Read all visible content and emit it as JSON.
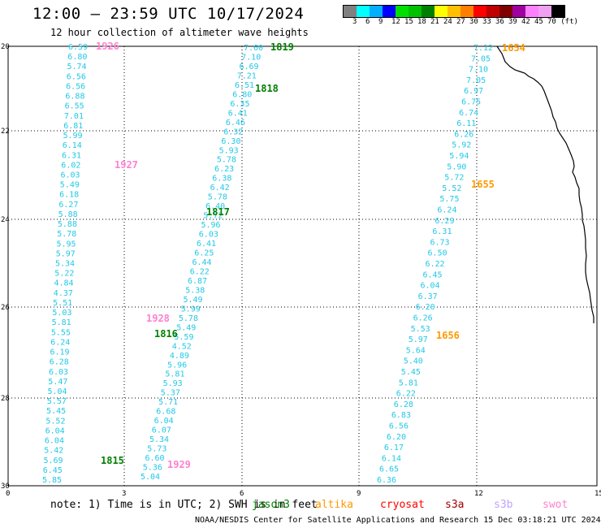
{
  "header": {
    "title": "12:00 – 23:59 UTC 10/17/2024",
    "subtitle": "12 hour collection of altimeter wave heights"
  },
  "colorbar": {
    "colors": [
      "#808080",
      "#00ffff",
      "#00b0ff",
      "#0000ff",
      "#00e000",
      "#00c000",
      "#008000",
      "#ffff00",
      "#ffc000",
      "#ff8000",
      "#ff0000",
      "#c00000",
      "#800000",
      "#a000a0",
      "#ff80ff",
      "#f0a0f0",
      "#000000"
    ],
    "labels": [
      "3",
      "6",
      "9",
      "12",
      "15",
      "18",
      "21",
      "24",
      "27",
      "30",
      "33",
      "36",
      "39",
      "42",
      "45",
      "70 (ft)"
    ]
  },
  "map": {
    "lat_ticks": [
      "20",
      "22",
      "24",
      "26",
      "28",
      "30"
    ],
    "lon_ticks": [
      "0",
      "3",
      "6",
      "9",
      "12",
      "15"
    ],
    "coast_color": "#000000",
    "grid": "dotted"
  },
  "passes": [
    {
      "id": "1926",
      "color": "#ff80d0"
    },
    {
      "id": "1927",
      "color": "#ff80d0"
    },
    {
      "id": "1928",
      "color": "#ff80d0"
    },
    {
      "id": "1929",
      "color": "#ff80d0"
    },
    {
      "id": "1819",
      "color": "#008000"
    },
    {
      "id": "1818",
      "color": "#008000"
    },
    {
      "id": "1817",
      "color": "#008000"
    },
    {
      "id": "1816",
      "color": "#008000"
    },
    {
      "id": "1815",
      "color": "#008000"
    },
    {
      "id": "1654",
      "color": "#ff9900"
    },
    {
      "id": "1655",
      "color": "#ff9900"
    },
    {
      "id": "1656",
      "color": "#ff9900"
    }
  ],
  "track_left": [
    "6.59",
    "6.80",
    "5.74",
    "6.56",
    "6.56",
    "6.88",
    "6.55",
    "7.01",
    "6.81",
    "5.99",
    "6.14",
    "6.31",
    "6.02",
    "6.03",
    "5.49",
    "6.18",
    "6.27",
    "5.88",
    "5.88",
    "5.78",
    "5.95",
    "5.97",
    "5.34",
    "5.22",
    "4.84",
    "4.37",
    "5.51",
    "5.03",
    "5.81",
    "5.55",
    "6.24",
    "6.19",
    "6.28",
    "6.03",
    "5.47",
    "5.04",
    "5.57",
    "5.45",
    "5.52",
    "6.04",
    "6.04",
    "5.42",
    "5.69",
    "6.45",
    "5.85"
  ],
  "track_middle": [
    "7.60",
    "7.10",
    "6.69",
    "7.21",
    "6.51",
    "6.80",
    "6.35",
    "6.41",
    "6.46",
    "6.32",
    "6.30",
    "5.93",
    "5.78",
    "6.23",
    "6.38",
    "6.42",
    "5.78",
    "6.40",
    "5.72",
    "5.96",
    "6.03",
    "6.41",
    "6.25",
    "6.44",
    "6.22",
    "6.87",
    "5.38",
    "5.49",
    "5.99",
    "5.78",
    "5.49",
    "5.59",
    "4.52",
    "4.89",
    "5.96",
    "5.81",
    "5.93",
    "5.37",
    "5.71",
    "6.68",
    "6.04",
    "6.07",
    "5.34",
    "5.73",
    "6.60",
    "5.36",
    "5.04"
  ],
  "track_right": [
    "7.12",
    "7.05",
    "7.10",
    "7.05",
    "6.97",
    "6.75",
    "6.74",
    "6.11",
    "6.26",
    "5.92",
    "5.94",
    "5.90",
    "5.72",
    "5.52",
    "5.75",
    "6.24",
    "6.29",
    "6.31",
    "6.73",
    "6.50",
    "6.22",
    "6.45",
    "6.04",
    "6.37",
    "6.20",
    "6.26",
    "5.53",
    "5.97",
    "5.64",
    "5.40",
    "5.45",
    "5.81",
    "6.22",
    "6.28",
    "6.83",
    "6.56",
    "6.20",
    "6.17",
    "6.14",
    "6.65",
    "6.36"
  ],
  "note": "note: 1) Time is in UTC; 2) SWH is in feet",
  "legend": [
    {
      "label": "jason3",
      "color": "#008000"
    },
    {
      "label": "altika",
      "color": "#ff9900"
    },
    {
      "label": "cryosat",
      "color": "#ff0000"
    },
    {
      "label": "s3a",
      "color": "#a00000"
    },
    {
      "label": "s3b",
      "color": "#c0a0ff"
    },
    {
      "label": "swot",
      "color": "#ff80d0"
    }
  ],
  "footer": "NOAA/NESDIS Center for Satellite Applications and Research   15 Dec 03:18:21 UTC 2024"
}
